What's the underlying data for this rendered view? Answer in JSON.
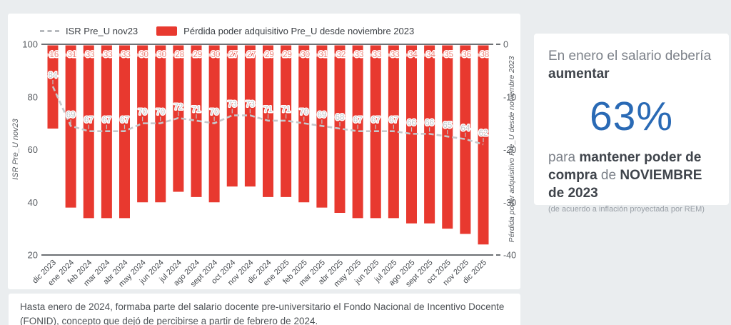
{
  "legend": {
    "line_label": "ISR Pre_U nov23",
    "bar_label": "Pérdida poder adquisitivo Pre_U desde noviembre 2023"
  },
  "chart_data": {
    "type": "bar",
    "subtype": "combo-bar-line-dual-axis",
    "categories": [
      "dic 2023",
      "ene 2024",
      "feb 2024",
      "mar 2024",
      "abr 2024",
      "may 2024",
      "jun 2024",
      "jul 2024",
      "ago 2024",
      "sept 2024",
      "oct 2024",
      "nov 2024",
      "dic 2024",
      "ene 2025",
      "feb 2025",
      "mar 2025",
      "abr 2025",
      "may 2025",
      "jun 2025",
      "jul 2025",
      "ago 2025",
      "sept 2025",
      "oct 2025",
      "nov 2025",
      "dic 2025"
    ],
    "series": [
      {
        "name": "ISR Pre_U nov23",
        "type": "line",
        "axis": "left",
        "values": [
          84,
          69,
          67,
          67,
          67,
          70,
          70,
          72,
          71,
          70,
          73,
          73,
          71,
          71,
          70,
          69,
          68,
          67,
          67,
          67,
          66,
          66,
          65,
          64,
          62
        ]
      },
      {
        "name": "Pérdida poder adquisitivo Pre_U desde noviembre 2023",
        "type": "bar",
        "axis": "right",
        "values": [
          -16,
          -31,
          -33,
          -33,
          -33,
          -30,
          -30,
          -28,
          -29,
          -30,
          -27,
          -27,
          -29,
          -29,
          -30,
          -31,
          -32,
          -33,
          -33,
          -33,
          -34,
          -34,
          -35,
          -36,
          -38
        ]
      }
    ],
    "left_axis": {
      "label": "ISR Pre_U nov23",
      "ticks": [
        100,
        80,
        60,
        40,
        20
      ],
      "range": [
        20,
        100
      ]
    },
    "right_axis": {
      "label": "Pérdida poder adquisitivo Pre_U desde noviembre 2023",
      "ticks": [
        0,
        -10,
        -20,
        -30,
        -40
      ],
      "range": [
        -40,
        0
      ]
    },
    "grid": "off",
    "legend_position": "top",
    "colors": {
      "bar": "#e8392f",
      "bar_label": "#f0857b",
      "line": "#c5c8cb",
      "line_label": "#c2c6c9",
      "axis_line": "#6d7074",
      "tick_text": "#5a5e63",
      "x_label_text": "#464a4f",
      "axis_title_text": "#5a5e63"
    }
  },
  "panel": {
    "line1_regular": "En enero el salario debería ",
    "line1_bold": "aumentar",
    "big_value": "63%",
    "value_color": "#2a6ab5",
    "line2_p1": "para ",
    "line2_b1": "mantener poder de compra",
    "line2_p2": " de ",
    "line2_b2": "NOVIEMBRE de 2023",
    "note": "(de acuerdo a inflación proyectada por REM)"
  },
  "footnote": {
    "text": "Hasta enero de 2024, formaba parte del salario docente pre-universitario el Fondo Nacional de Incentivo Docente (FONID), concepto que dejó de percibirse a partir de febrero de 2024."
  }
}
